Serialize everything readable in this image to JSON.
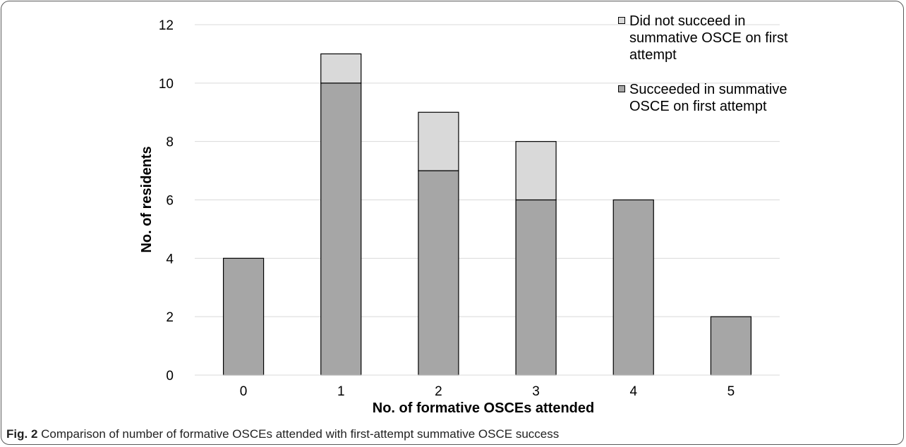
{
  "caption": {
    "label": "Fig. 2",
    "text": "Comparison of number of formative OSCEs attended with first-attempt summative OSCE success"
  },
  "colors": {
    "succeeded": "#a6a6a6",
    "did_not_succeed": "#d9d9d9",
    "gridline": "#d9d9d9",
    "border": "#000000"
  },
  "chart_data": {
    "type": "bar",
    "stacked": true,
    "categories": [
      "0",
      "1",
      "2",
      "3",
      "4",
      "5"
    ],
    "series": [
      {
        "name": "Succeeded in summative OSCE on first attempt",
        "values": [
          4,
          10,
          7,
          6,
          6,
          2
        ],
        "color": "#a6a6a6"
      },
      {
        "name": "Did not succeed in summative OSCE on first attempt",
        "values": [
          0,
          1,
          2,
          2,
          0,
          0
        ],
        "color": "#d9d9d9"
      }
    ],
    "xlabel": "No. of formative OSCEs attended",
    "ylabel": "No. of residents",
    "ylim": [
      0,
      12
    ],
    "yticks": [
      0,
      2,
      4,
      6,
      8,
      10,
      12
    ],
    "grid": true,
    "legend_position": "top-right"
  }
}
